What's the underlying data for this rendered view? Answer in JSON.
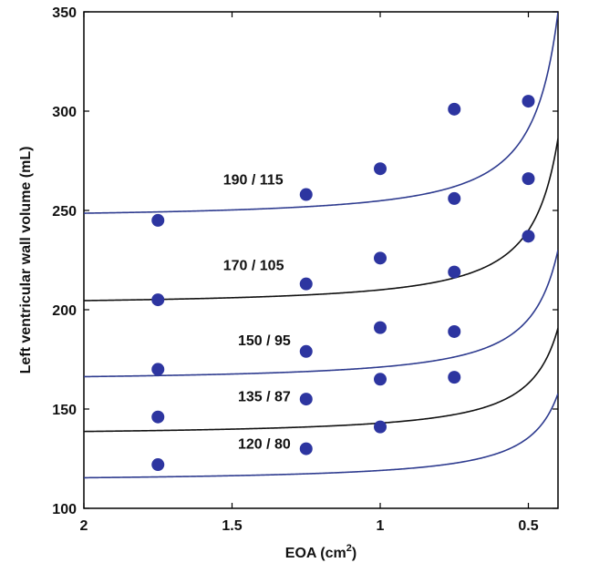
{
  "chart_data": {
    "type": "scatter",
    "xlabel": "EOA (cm",
    "xlabel_sup": "2",
    "xlabel_end": ")",
    "ylabel": "Left ventricular wall volume (mL)",
    "xlim": [
      2.0,
      0.4
    ],
    "ylim": [
      100,
      350
    ],
    "x_reversed": true,
    "grid": false,
    "x_ticks": [
      2,
      1.5,
      1,
      0.5
    ],
    "x_tick_labels": [
      "2",
      "1.5",
      "1",
      "0.5"
    ],
    "y_ticks": [
      100,
      150,
      200,
      250,
      300,
      350
    ],
    "y_tick_labels": [
      "100",
      "150",
      "200",
      "250",
      "300",
      "350"
    ],
    "series": [
      {
        "name": "190 / 115",
        "line_color": "#2e3b8f",
        "curve_params": {
          "base": 248.6,
          "k": 3.0
        },
        "points": [
          [
            1.75,
            245
          ],
          [
            1.25,
            258
          ],
          [
            1.0,
            271
          ],
          [
            0.75,
            301
          ],
          [
            0.5,
            305
          ]
        ]
      },
      {
        "name": "170 / 105",
        "line_color": "#111111",
        "curve_params": {
          "base": 204.6,
          "k": 2.9
        },
        "points": [
          [
            1.75,
            205
          ],
          [
            1.25,
            213
          ],
          [
            1.0,
            226
          ],
          [
            0.75,
            256
          ],
          [
            0.5,
            266
          ]
        ]
      },
      {
        "name": "150 / 95",
        "line_color": "#2e3b8f",
        "curve_params": {
          "base": 166.3,
          "k": 2.7
        },
        "points": [
          [
            1.75,
            170
          ],
          [
            1.25,
            179
          ],
          [
            1.0,
            191
          ],
          [
            0.75,
            219
          ],
          [
            0.5,
            237
          ]
        ]
      },
      {
        "name": "135 / 87",
        "line_color": "#111111",
        "curve_params": {
          "base": 138.7,
          "k": 2.6
        },
        "points": [
          [
            1.75,
            146
          ],
          [
            1.25,
            155
          ],
          [
            1.0,
            165
          ],
          [
            0.75,
            189
          ]
        ]
      },
      {
        "name": "120 / 80",
        "line_color": "#2e3b8f",
        "curve_params": {
          "base": 115.4,
          "k": 2.5
        },
        "points": [
          [
            1.75,
            122
          ],
          [
            1.25,
            130
          ],
          [
            1.0,
            141
          ],
          [
            0.75,
            166
          ]
        ]
      }
    ],
    "curve_labels": [
      {
        "text": "190 / 115",
        "x": 1.53,
        "y": 263
      },
      {
        "text": "170 / 105",
        "x": 1.53,
        "y": 220
      },
      {
        "text": "150 / 95",
        "x": 1.48,
        "y": 182
      },
      {
        "text": "135 / 87",
        "x": 1.48,
        "y": 154
      },
      {
        "text": "120 / 80",
        "x": 1.48,
        "y": 130
      }
    ],
    "marker_color": "#2d35a0"
  }
}
